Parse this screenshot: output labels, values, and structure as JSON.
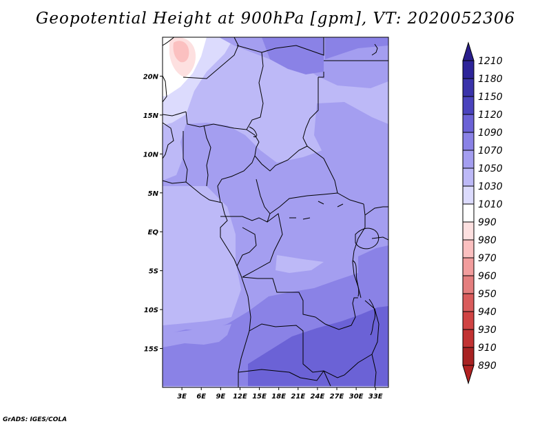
{
  "title": "Geopotential Height at 900hPa [gpm], VT: 2020052306",
  "credit": "GrADS: IGES/COLA",
  "map": {
    "lon_range": [
      0,
      35
    ],
    "lat_range": [
      -20,
      25
    ],
    "x_ticks": [
      {
        "lon": 3,
        "label": "3E"
      },
      {
        "lon": 6,
        "label": "6E"
      },
      {
        "lon": 9,
        "label": "9E"
      },
      {
        "lon": 12,
        "label": "12E"
      },
      {
        "lon": 15,
        "label": "15E"
      },
      {
        "lon": 18,
        "label": "18E"
      },
      {
        "lon": 21,
        "label": "21E"
      },
      {
        "lon": 24,
        "label": "24E"
      },
      {
        "lon": 27,
        "label": "27E"
      },
      {
        "lon": 30,
        "label": "30E"
      },
      {
        "lon": 33,
        "label": "33E"
      }
    ],
    "y_ticks": [
      {
        "lat": 20,
        "label": "20N"
      },
      {
        "lat": 15,
        "label": "15N"
      },
      {
        "lat": 10,
        "label": "10N"
      },
      {
        "lat": 5,
        "label": "5N"
      },
      {
        "lat": 0,
        "label": "EQ"
      },
      {
        "lat": -5,
        "label": "5S"
      },
      {
        "lat": -10,
        "label": "10S"
      },
      {
        "lat": -15,
        "label": "15S"
      }
    ]
  },
  "colorbar": {
    "levels": [
      {
        "label": "1210",
        "color": "#2a1e8c"
      },
      {
        "label": "1180",
        "color": "#2d2499"
      },
      {
        "label": "1150",
        "color": "#3a33aa"
      },
      {
        "label": "1120",
        "color": "#4a43bd"
      },
      {
        "label": "1090",
        "color": "#6b62d6"
      },
      {
        "label": "1070",
        "color": "#8a82e6"
      },
      {
        "label": "1050",
        "color": "#a49ef0"
      },
      {
        "label": "1030",
        "color": "#bdb9f7"
      },
      {
        "label": "1010",
        "color": "#dcdbfd"
      },
      {
        "label": "990",
        "color": "#ffffff"
      },
      {
        "label": "980",
        "color": "#fde0e0"
      },
      {
        "label": "970",
        "color": "#fbc0c0"
      },
      {
        "label": "960",
        "color": "#f29d9d"
      },
      {
        "label": "950",
        "color": "#e47e7e"
      },
      {
        "label": "940",
        "color": "#d95c5c"
      },
      {
        "label": "930",
        "color": "#d04343"
      },
      {
        "label": "910",
        "color": "#c13232"
      },
      {
        "label": "890",
        "color": "#a82222"
      }
    ],
    "min_color": "#b22222"
  }
}
